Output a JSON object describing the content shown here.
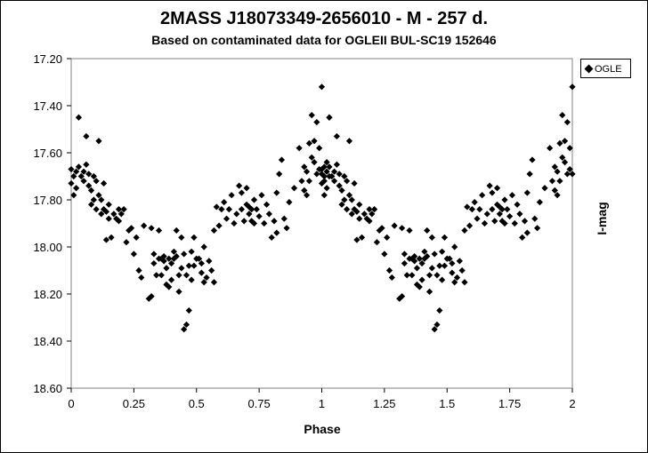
{
  "chart_data": {
    "type": "scatter",
    "title": "2MASS J18073349-2656010 - M - 257 d.",
    "subtitle": "Based on contaminated data for OGLEII BUL-SC19 152646",
    "xlabel": "Phase",
    "ylabel": "I-mag",
    "xlim": [
      0,
      2
    ],
    "ylim": [
      17.2,
      18.6
    ],
    "y_inverted": true,
    "x_ticks": [
      "0",
      "0.25",
      "0.5",
      "0.75",
      "1",
      "1.25",
      "1.5",
      "1.75",
      "2"
    ],
    "y_ticks": [
      "17.20",
      "17.40",
      "17.60",
      "17.80",
      "18.00",
      "18.20",
      "18.40",
      "18.60"
    ],
    "grid": false,
    "legend_position": "top-right",
    "series": [
      {
        "name": "OGLE",
        "marker": "diamond",
        "color": "#000000",
        "points": [
          [
            0.0,
            17.67
          ],
          [
            0.0,
            17.73
          ],
          [
            0.01,
            17.78
          ],
          [
            0.01,
            17.7
          ],
          [
            0.02,
            17.68
          ],
          [
            0.02,
            17.75
          ],
          [
            0.03,
            17.45
          ],
          [
            0.03,
            17.66
          ],
          [
            0.04,
            17.7
          ],
          [
            0.05,
            17.68
          ],
          [
            0.05,
            17.72
          ],
          [
            0.06,
            17.65
          ],
          [
            0.06,
            17.53
          ],
          [
            0.07,
            17.69
          ],
          [
            0.07,
            17.74
          ],
          [
            0.08,
            17.82
          ],
          [
            0.08,
            17.76
          ],
          [
            0.09,
            17.7
          ],
          [
            0.09,
            17.8
          ],
          [
            0.1,
            17.72
          ],
          [
            0.1,
            17.84
          ],
          [
            0.11,
            17.78
          ],
          [
            0.11,
            17.55
          ],
          [
            0.12,
            17.86
          ],
          [
            0.12,
            17.8
          ],
          [
            0.13,
            17.73
          ],
          [
            0.13,
            17.84
          ],
          [
            0.14,
            17.97
          ],
          [
            0.14,
            17.85
          ],
          [
            0.15,
            17.88
          ],
          [
            0.15,
            17.82
          ],
          [
            0.16,
            17.96
          ],
          [
            0.17,
            17.86
          ],
          [
            0.18,
            17.88
          ],
          [
            0.19,
            17.84
          ],
          [
            0.19,
            17.89
          ],
          [
            0.2,
            17.86
          ],
          [
            0.21,
            17.84
          ],
          [
            0.22,
            17.98
          ],
          [
            0.23,
            17.93
          ],
          [
            0.24,
            17.92
          ],
          [
            0.25,
            18.03
          ],
          [
            0.26,
            17.96
          ],
          [
            0.27,
            18.1
          ],
          [
            0.28,
            18.13
          ],
          [
            0.29,
            17.91
          ],
          [
            0.31,
            18.22
          ],
          [
            0.32,
            18.21
          ],
          [
            0.32,
            17.92
          ],
          [
            0.33,
            18.07
          ],
          [
            0.33,
            18.03
          ],
          [
            0.34,
            18.12
          ],
          [
            0.35,
            18.05
          ],
          [
            0.35,
            17.93
          ],
          [
            0.36,
            18.05
          ],
          [
            0.36,
            18.12
          ],
          [
            0.37,
            18.04
          ],
          [
            0.37,
            18.06
          ],
          [
            0.38,
            18.09
          ],
          [
            0.38,
            18.16
          ],
          [
            0.39,
            18.17
          ],
          [
            0.39,
            18.05
          ],
          [
            0.4,
            18.14
          ],
          [
            0.4,
            18.07
          ],
          [
            0.41,
            18.02
          ],
          [
            0.41,
            18.05
          ],
          [
            0.42,
            17.93
          ],
          [
            0.42,
            18.04
          ],
          [
            0.43,
            18.12
          ],
          [
            0.43,
            18.19
          ],
          [
            0.44,
            17.96
          ],
          [
            0.44,
            18.09
          ],
          [
            0.45,
            18.35
          ],
          [
            0.45,
            18.03
          ],
          [
            0.46,
            18.33
          ],
          [
            0.46,
            18.12
          ],
          [
            0.47,
            18.27
          ],
          [
            0.47,
            18.08
          ],
          [
            0.48,
            18.02
          ],
          [
            0.48,
            18.14
          ],
          [
            0.49,
            17.96
          ],
          [
            0.49,
            18.08
          ],
          [
            0.5,
            18.05
          ],
          [
            0.51,
            18.05
          ],
          [
            0.52,
            18.07
          ],
          [
            0.52,
            18.11
          ],
          [
            0.53,
            18.0
          ],
          [
            0.53,
            18.15
          ],
          [
            0.54,
            18.13
          ],
          [
            0.55,
            18.06
          ],
          [
            0.56,
            18.1
          ],
          [
            0.57,
            18.15
          ],
          [
            0.57,
            17.93
          ],
          [
            0.58,
            17.83
          ],
          [
            0.59,
            17.91
          ],
          [
            0.6,
            17.84
          ],
          [
            0.61,
            17.81
          ],
          [
            0.62,
            17.88
          ],
          [
            0.63,
            17.84
          ],
          [
            0.64,
            17.78
          ],
          [
            0.65,
            17.9
          ],
          [
            0.66,
            17.86
          ],
          [
            0.67,
            17.74
          ],
          [
            0.68,
            17.84
          ],
          [
            0.68,
            17.77
          ],
          [
            0.69,
            17.89
          ],
          [
            0.7,
            17.82
          ],
          [
            0.7,
            17.75
          ],
          [
            0.71,
            17.86
          ],
          [
            0.71,
            17.83
          ],
          [
            0.72,
            17.84
          ],
          [
            0.72,
            17.89
          ],
          [
            0.73,
            17.8
          ],
          [
            0.73,
            17.9
          ],
          [
            0.74,
            17.84
          ],
          [
            0.75,
            17.87
          ],
          [
            0.76,
            17.78
          ],
          [
            0.77,
            17.9
          ],
          [
            0.78,
            17.82
          ],
          [
            0.79,
            17.86
          ],
          [
            0.8,
            17.96
          ],
          [
            0.81,
            17.89
          ],
          [
            0.82,
            17.77
          ],
          [
            0.82,
            17.94
          ],
          [
            0.83,
            17.69
          ],
          [
            0.84,
            17.63
          ],
          [
            0.85,
            17.88
          ],
          [
            0.86,
            17.92
          ],
          [
            0.87,
            17.81
          ],
          [
            0.89,
            17.75
          ],
          [
            0.91,
            17.58
          ],
          [
            0.92,
            17.72
          ],
          [
            0.93,
            17.66
          ],
          [
            0.93,
            17.76
          ],
          [
            0.94,
            17.68
          ],
          [
            0.94,
            17.78
          ],
          [
            0.95,
            17.72
          ],
          [
            0.95,
            17.56
          ],
          [
            0.96,
            17.44
          ],
          [
            0.96,
            17.62
          ],
          [
            0.97,
            17.64
          ],
          [
            0.97,
            17.55
          ],
          [
            0.98,
            17.47
          ],
          [
            0.98,
            17.69
          ],
          [
            0.99,
            17.67
          ],
          [
            0.99,
            17.58
          ],
          [
            1.0,
            17.32
          ],
          [
            1.0,
            17.69
          ],
          [
            1.01,
            17.72
          ],
          [
            1.01,
            17.66
          ],
          [
            1.02,
            17.64
          ],
          [
            1.03,
            17.45
          ],
          [
            1.03,
            17.7
          ]
        ]
      }
    ]
  },
  "legend": {
    "label": "OGLE"
  }
}
